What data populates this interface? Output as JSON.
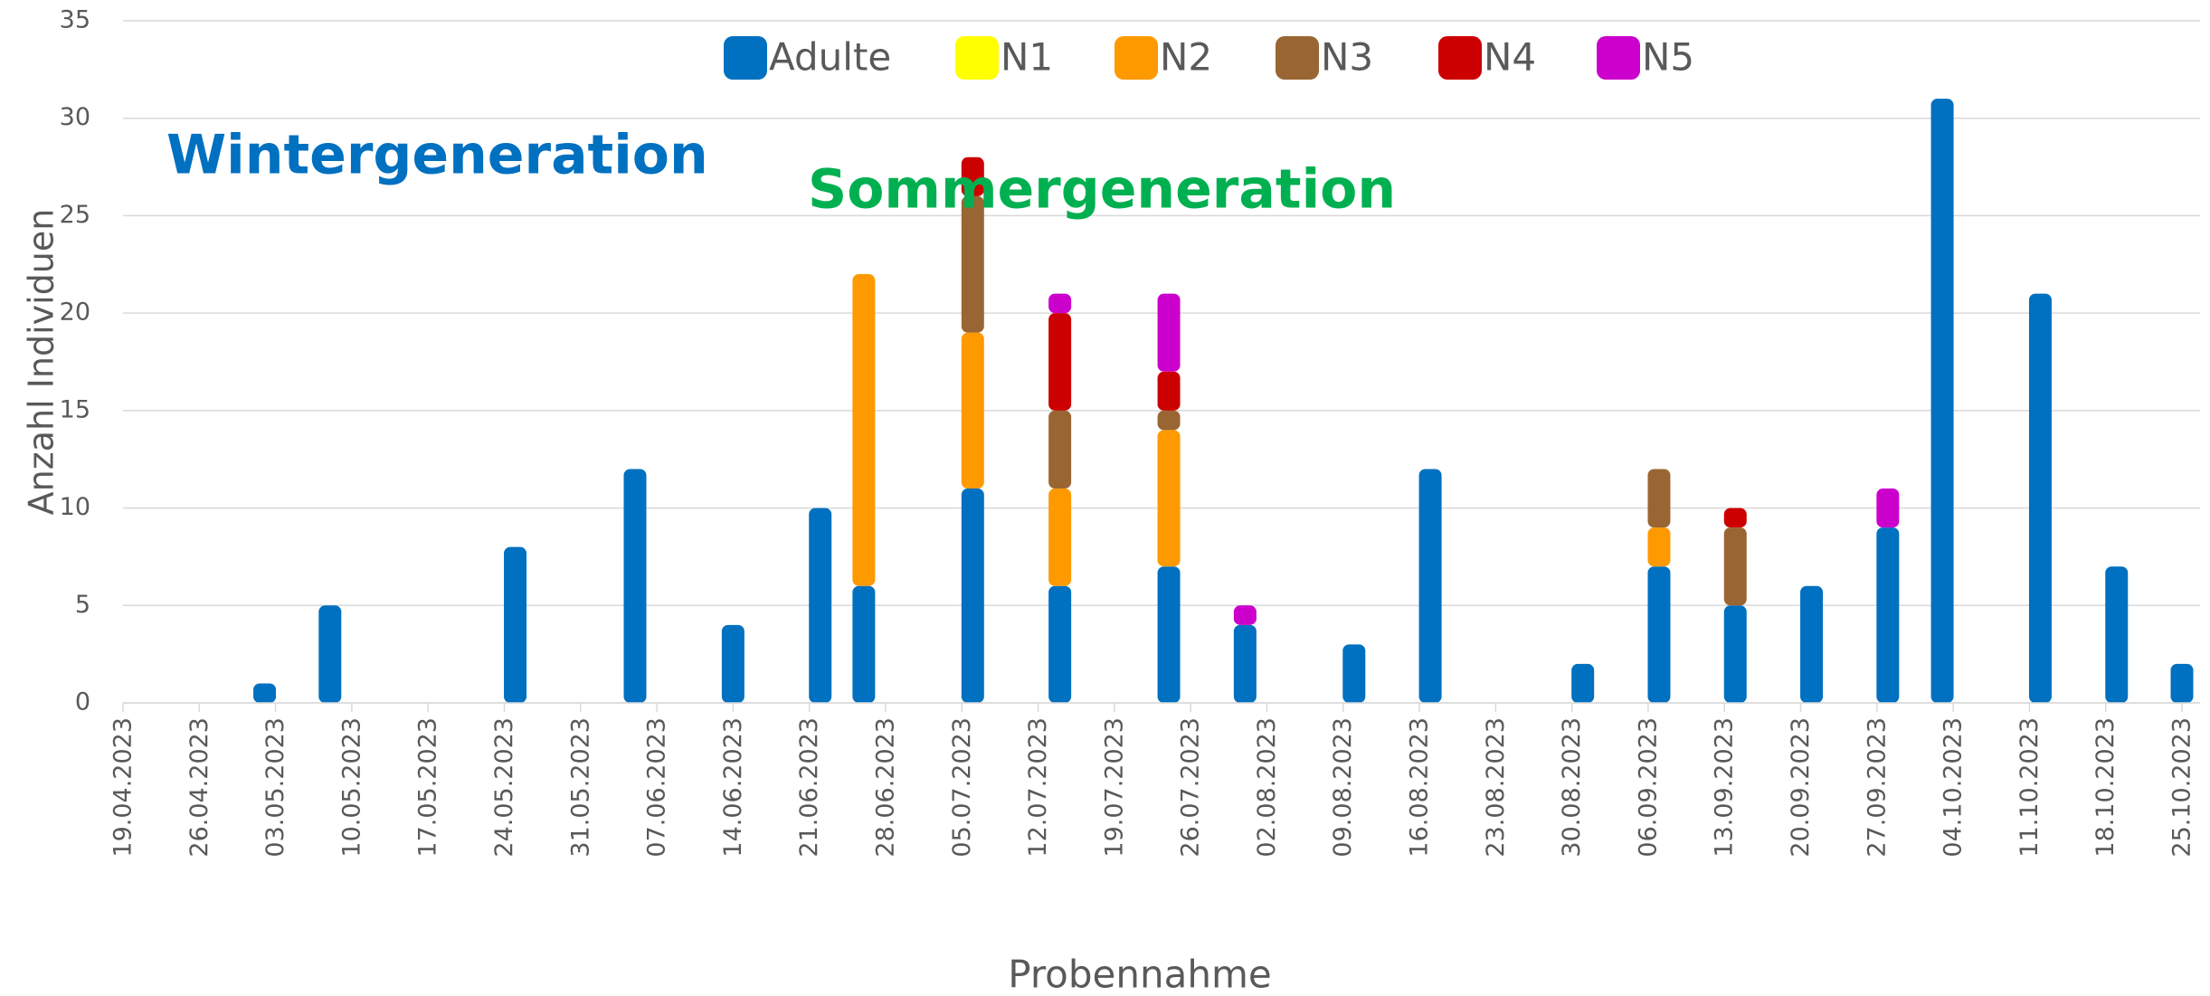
{
  "chart_data": {
    "type": "stacked_bar",
    "ylabel": "Anzahl Individuen",
    "xlabel": "Probennahme",
    "annotations": [
      {
        "text": "Wintergeneration",
        "color": "#0070c0"
      },
      {
        "text": "Sommergeneration",
        "color": "#00b050"
      }
    ],
    "x": [
      "2023-05-02",
      "2023-05-08",
      "2023-05-25",
      "2023-06-05",
      "2023-06-14",
      "2023-06-22",
      "2023-06-26",
      "2023-07-06",
      "2023-07-14",
      "2023-07-24",
      "2023-07-31",
      "2023-08-10",
      "2023-08-17",
      "2023-08-31",
      "2023-09-07",
      "2023-09-14",
      "2023-09-21",
      "2023-09-28",
      "2023-10-03",
      "2023-10-12",
      "2023-10-19",
      "2023-10-25"
    ],
    "series": [
      {
        "name": "Adulte",
        "color": "#0070c0",
        "values": [
          1,
          5,
          8,
          12,
          4,
          10,
          6,
          11,
          6,
          7,
          4,
          3,
          12,
          2,
          7,
          5,
          6,
          9,
          31,
          21,
          7,
          2
        ]
      },
      {
        "name": "N1",
        "color": "#ffff00",
        "values": [
          0,
          0,
          0,
          0,
          0,
          0,
          0,
          0,
          0,
          0,
          0,
          0,
          0,
          0,
          0,
          0,
          0,
          0,
          0,
          0,
          0,
          0
        ]
      },
      {
        "name": "N2",
        "color": "#ff9900",
        "values": [
          0,
          0,
          0,
          0,
          0,
          0,
          16,
          8,
          5,
          7,
          0,
          0,
          0,
          0,
          2,
          0,
          0,
          0,
          0,
          0,
          0,
          0
        ]
      },
      {
        "name": "N3",
        "color": "#996633",
        "values": [
          0,
          0,
          0,
          0,
          0,
          0,
          0,
          7,
          4,
          1,
          0,
          0,
          0,
          0,
          3,
          4,
          0,
          0,
          0,
          0,
          0,
          0
        ]
      },
      {
        "name": "N4",
        "color": "#cc0000",
        "values": [
          0,
          0,
          0,
          0,
          0,
          0,
          0,
          2,
          5,
          2,
          0,
          0,
          0,
          0,
          0,
          1,
          0,
          0,
          0,
          0,
          0,
          0
        ]
      },
      {
        "name": "N5",
        "color": "#cc00cc",
        "values": [
          0,
          0,
          0,
          0,
          0,
          0,
          0,
          0,
          1,
          4,
          1,
          0,
          0,
          0,
          0,
          0,
          0,
          2,
          0,
          0,
          0,
          0
        ]
      }
    ],
    "xlim": [
      "2023-04-19",
      "2023-10-25"
    ],
    "xticks": [
      {
        "value": "2023-04-19",
        "label": "19.04.2023"
      },
      {
        "value": "2023-04-26",
        "label": "26.04.2023"
      },
      {
        "value": "2023-05-03",
        "label": "03.05.2023"
      },
      {
        "value": "2023-05-10",
        "label": "10.05.2023"
      },
      {
        "value": "2023-05-17",
        "label": "17.05.2023"
      },
      {
        "value": "2023-05-24",
        "label": "24.05.2023"
      },
      {
        "value": "2023-05-31",
        "label": "31.05.2023"
      },
      {
        "value": "2023-06-07",
        "label": "07.06.2023"
      },
      {
        "value": "2023-06-14",
        "label": "14.06.2023"
      },
      {
        "value": "2023-06-21",
        "label": "21.06.2023"
      },
      {
        "value": "2023-06-28",
        "label": "28.06.2023"
      },
      {
        "value": "2023-07-05",
        "label": "05.07.2023"
      },
      {
        "value": "2023-07-12",
        "label": "12.07.2023"
      },
      {
        "value": "2023-07-19",
        "label": "19.07.2023"
      },
      {
        "value": "2023-07-26",
        "label": "26.07.2023"
      },
      {
        "value": "2023-08-02",
        "label": "02.08.2023"
      },
      {
        "value": "2023-08-09",
        "label": "09.08.2023"
      },
      {
        "value": "2023-08-16",
        "label": "16.08.2023"
      },
      {
        "value": "2023-08-23",
        "label": "23.08.2023"
      },
      {
        "value": "2023-08-30",
        "label": "30.08.2023"
      },
      {
        "value": "2023-09-06",
        "label": "06.09.2023"
      },
      {
        "value": "2023-09-13",
        "label": "13.09.2023"
      },
      {
        "value": "2023-09-20",
        "label": "20.09.2023"
      },
      {
        "value": "2023-09-27",
        "label": "27.09.2023"
      },
      {
        "value": "2023-10-04",
        "label": "04.10.2023"
      },
      {
        "value": "2023-10-11",
        "label": "11.10.2023"
      },
      {
        "value": "2023-10-18",
        "label": "18.10.2023"
      },
      {
        "value": "2023-10-25",
        "label": "25.10.2023"
      }
    ],
    "ylim": [
      0,
      35
    ],
    "yticks": [
      0,
      5,
      10,
      15,
      20,
      25,
      30,
      35
    ],
    "grid": true,
    "legend": "top"
  }
}
